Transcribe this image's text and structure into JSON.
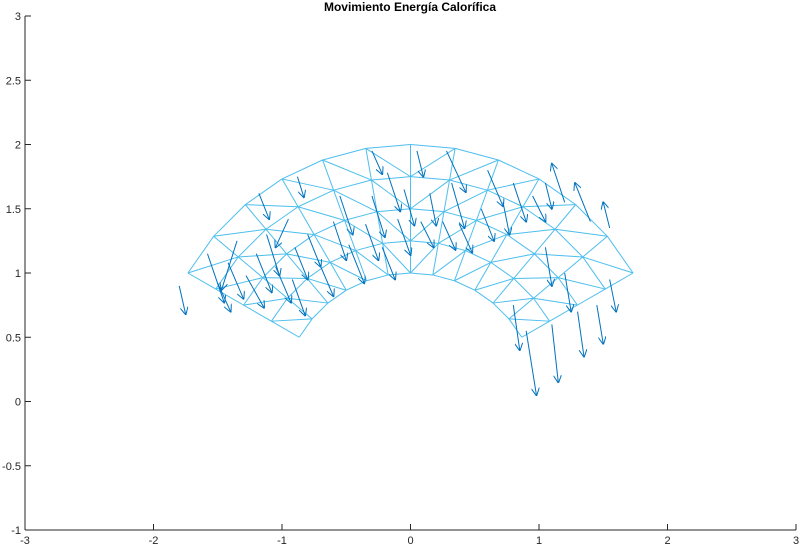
{
  "chart_data": {
    "type": "quiver",
    "title": "Movimiento Energía Calorífica",
    "xlabel": "",
    "ylabel": "",
    "xlim": [
      -3,
      3
    ],
    "ylim": [
      -1,
      3
    ],
    "xticks": [
      "-3",
      "-2",
      "-1",
      "0",
      "1",
      "2",
      "3"
    ],
    "yticks": [
      "-1",
      "-0.5",
      "0",
      "0.5",
      "1",
      "1.5",
      "2",
      "2.5",
      "3"
    ],
    "grid": false,
    "mesh": {
      "center": [
        0,
        0
      ],
      "inner_radius": 1,
      "outer_radius": 2,
      "start_angle_deg": 30,
      "end_angle_deg": 150,
      "radial_divisions": 4,
      "angular_divisions": 12
    },
    "arrows": [
      {
        "x": -1.8,
        "y": 0.9,
        "u": 0.05,
        "v": -0.22
      },
      {
        "x": -1.58,
        "y": 1.15,
        "u": 0.13,
        "v": -0.38
      },
      {
        "x": -1.5,
        "y": 0.92,
        "u": 0.1,
        "v": -0.22
      },
      {
        "x": -1.42,
        "y": 1.08,
        "u": 0.12,
        "v": -0.28
      },
      {
        "x": -1.35,
        "y": 1.25,
        "u": -0.12,
        "v": -0.38
      },
      {
        "x": -1.28,
        "y": 0.98,
        "u": 0.14,
        "v": -0.25
      },
      {
        "x": -1.2,
        "y": 1.15,
        "u": 0.12,
        "v": -0.3
      },
      {
        "x": -1.12,
        "y": 1.3,
        "u": 0.1,
        "v": -0.32
      },
      {
        "x": -1.05,
        "y": 1.05,
        "u": 0.12,
        "v": -0.28
      },
      {
        "x": -0.95,
        "y": 1.42,
        "u": -0.1,
        "v": -0.22
      },
      {
        "x": -0.9,
        "y": 1.2,
        "u": 0.1,
        "v": -0.25
      },
      {
        "x": -1.18,
        "y": 1.62,
        "u": 0.08,
        "v": -0.2
      },
      {
        "x": -0.92,
        "y": 0.95,
        "u": 0.1,
        "v": -0.28
      },
      {
        "x": -0.8,
        "y": 1.3,
        "u": 0.1,
        "v": -0.25
      },
      {
        "x": -0.72,
        "y": 1.1,
        "u": 0.12,
        "v": -0.28
      },
      {
        "x": -0.6,
        "y": 1.4,
        "u": 0.1,
        "v": -0.3
      },
      {
        "x": -0.88,
        "y": 1.75,
        "u": 0.05,
        "v": -0.16
      },
      {
        "x": -0.55,
        "y": 1.6,
        "u": 0.1,
        "v": -0.3
      },
      {
        "x": -0.48,
        "y": 1.22,
        "u": 0.12,
        "v": -0.3
      },
      {
        "x": -0.35,
        "y": 1.38,
        "u": 0.1,
        "v": -0.28
      },
      {
        "x": -0.3,
        "y": 1.6,
        "u": 0.1,
        "v": -0.32
      },
      {
        "x": -0.3,
        "y": 1.95,
        "u": 0.08,
        "v": -0.18
      },
      {
        "x": -0.22,
        "y": 1.2,
        "u": 0.1,
        "v": -0.25
      },
      {
        "x": -0.18,
        "y": 1.78,
        "u": 0.1,
        "v": -0.3
      },
      {
        "x": -0.1,
        "y": 1.42,
        "u": 0.1,
        "v": -0.28
      },
      {
        "x": -0.05,
        "y": 1.65,
        "u": 0.08,
        "v": -0.28
      },
      {
        "x": 0.05,
        "y": 1.95,
        "u": 0.05,
        "v": -0.2
      },
      {
        "x": 0.08,
        "y": 1.4,
        "u": 0.1,
        "v": -0.2
      },
      {
        "x": 0.15,
        "y": 1.62,
        "u": 0.05,
        "v": -0.25
      },
      {
        "x": 0.25,
        "y": 1.4,
        "u": 0.1,
        "v": -0.22
      },
      {
        "x": 0.28,
        "y": 1.95,
        "u": 0.15,
        "v": -0.32
      },
      {
        "x": 0.32,
        "y": 1.7,
        "u": 0.1,
        "v": -0.35
      },
      {
        "x": 0.38,
        "y": 1.38,
        "u": 0.1,
        "v": -0.22
      },
      {
        "x": 0.55,
        "y": 1.5,
        "u": 0.1,
        "v": -0.25
      },
      {
        "x": 0.6,
        "y": 1.8,
        "u": 0.12,
        "v": -0.28
      },
      {
        "x": 0.72,
        "y": 1.55,
        "u": 0.05,
        "v": -0.25
      },
      {
        "x": 0.8,
        "y": 1.7,
        "u": 0.1,
        "v": -0.3
      },
      {
        "x": 0.95,
        "y": 1.6,
        "u": 0.1,
        "v": -0.2
      },
      {
        "x": 1.05,
        "y": 1.7,
        "u": 0.05,
        "v": -0.2
      },
      {
        "x": 1.2,
        "y": 1.55,
        "u": -0.1,
        "v": 0.3
      },
      {
        "x": 1.4,
        "y": 1.4,
        "u": -0.12,
        "v": 0.3
      },
      {
        "x": 1.55,
        "y": 1.35,
        "u": -0.05,
        "v": 0.2
      },
      {
        "x": 0.8,
        "y": 0.75,
        "u": 0.05,
        "v": -0.35
      },
      {
        "x": 0.9,
        "y": 0.55,
        "u": 0.08,
        "v": -0.5
      },
      {
        "x": 1.1,
        "y": 0.6,
        "u": 0.05,
        "v": -0.45
      },
      {
        "x": 1.3,
        "y": 0.7,
        "u": 0.05,
        "v": -0.35
      },
      {
        "x": 1.45,
        "y": 0.75,
        "u": 0.05,
        "v": -0.3
      },
      {
        "x": 1.55,
        "y": 0.95,
        "u": 0.05,
        "v": -0.25
      },
      {
        "x": 1.2,
        "y": 1.0,
        "u": 0.05,
        "v": -0.3
      },
      {
        "x": 1.05,
        "y": 1.2,
        "u": 0.05,
        "v": -0.3
      }
    ]
  }
}
